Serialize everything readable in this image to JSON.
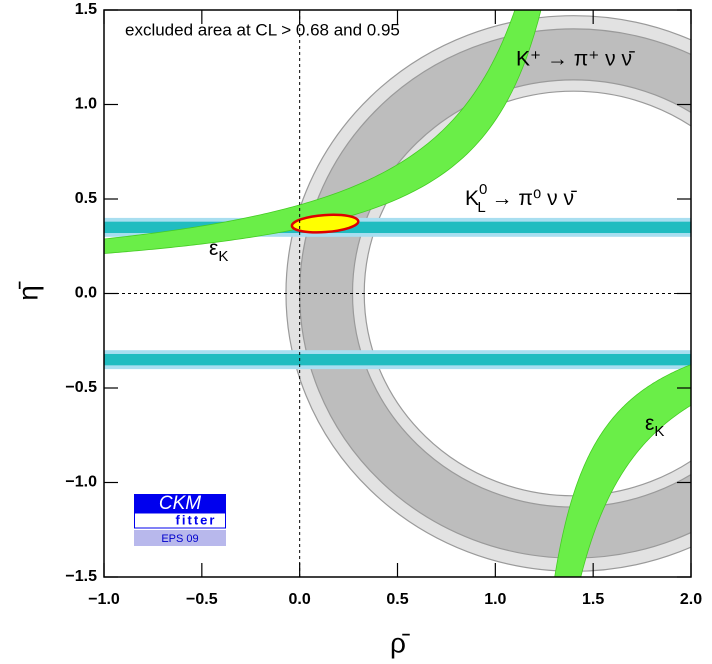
{
  "chart_data": {
    "type": "constraint-map",
    "xlabel": "ρ̄",
    "ylabel": "η̄",
    "xlim": [
      -1.0,
      2.0
    ],
    "ylim": [
      -1.5,
      1.5
    ],
    "xticks": [
      {
        "value": -1.0,
        "label": "−1.0"
      },
      {
        "value": -0.5,
        "label": "−0.5"
      },
      {
        "value": 0,
        "label": "0.0"
      },
      {
        "value": 0.5,
        "label": "0.5"
      },
      {
        "value": 1.0,
        "label": "1.0"
      },
      {
        "value": 1.5,
        "label": "1.5"
      },
      {
        "value": 2.0,
        "label": "2.0"
      }
    ],
    "yticks": [
      {
        "value": -1.5,
        "label": "−1.5"
      },
      {
        "value": -1.0,
        "label": "−1.0"
      },
      {
        "value": -0.5,
        "label": "−0.5"
      },
      {
        "value": 0,
        "label": "0.0"
      },
      {
        "value": 0.5,
        "label": "0.5"
      },
      {
        "value": 1.0,
        "label": "1.0"
      },
      {
        "value": 1.5,
        "label": "1.5"
      }
    ],
    "regions": [
      {
        "shape": "ring",
        "center": 1.4,
        "r": [
          1.07,
          1.47
        ],
        "color": "#e2e2e2"
      },
      {
        "shape": "ring",
        "center": 1.4,
        "r": [
          1.13,
          1.4
        ],
        "color": "#bdbdbd"
      },
      {
        "shape": "band",
        "y": [
          0.3,
          0.4
        ],
        "color": "#a8def0"
      },
      {
        "shape": "band",
        "y": [
          0.32,
          0.38
        ],
        "color": "#20bcc0"
      },
      {
        "shape": "band",
        "y": [
          -0.4,
          -0.3
        ],
        "color": "#a8def0"
      },
      {
        "shape": "band",
        "y": [
          -0.38,
          -0.32
        ],
        "color": "#20bcc0"
      },
      {
        "shape": "hyperbola",
        "branch": "upper",
        "c": 1.6,
        "k": [
          0.55,
          0.75
        ],
        "color": "#6aee48"
      },
      {
        "shape": "hyperbola",
        "branch": "lower",
        "c": 1.07,
        "k": [
          0.35,
          0.55
        ],
        "color": "#6aee48"
      },
      {
        "shape": "ellipse",
        "center": [
          0.13,
          0.37
        ],
        "r": [
          0.17,
          0.045
        ],
        "color": "#ffff00",
        "edge": "#dd0000"
      }
    ],
    "annotations": {
      "cl": "excluded area at CL > 0.68 and 0.95",
      "kplus": "K⁺ → π⁺ ν ν̄",
      "kl": {
        "base": "K",
        "sub": "L",
        "sup": "0",
        "rest": " → π⁰ ν ν̄"
      },
      "epsk": {
        "base": "ε",
        "sub": "K"
      }
    },
    "logo": {
      "top": "CKM",
      "middle": "fitter",
      "bottom": "EPS 09"
    }
  }
}
